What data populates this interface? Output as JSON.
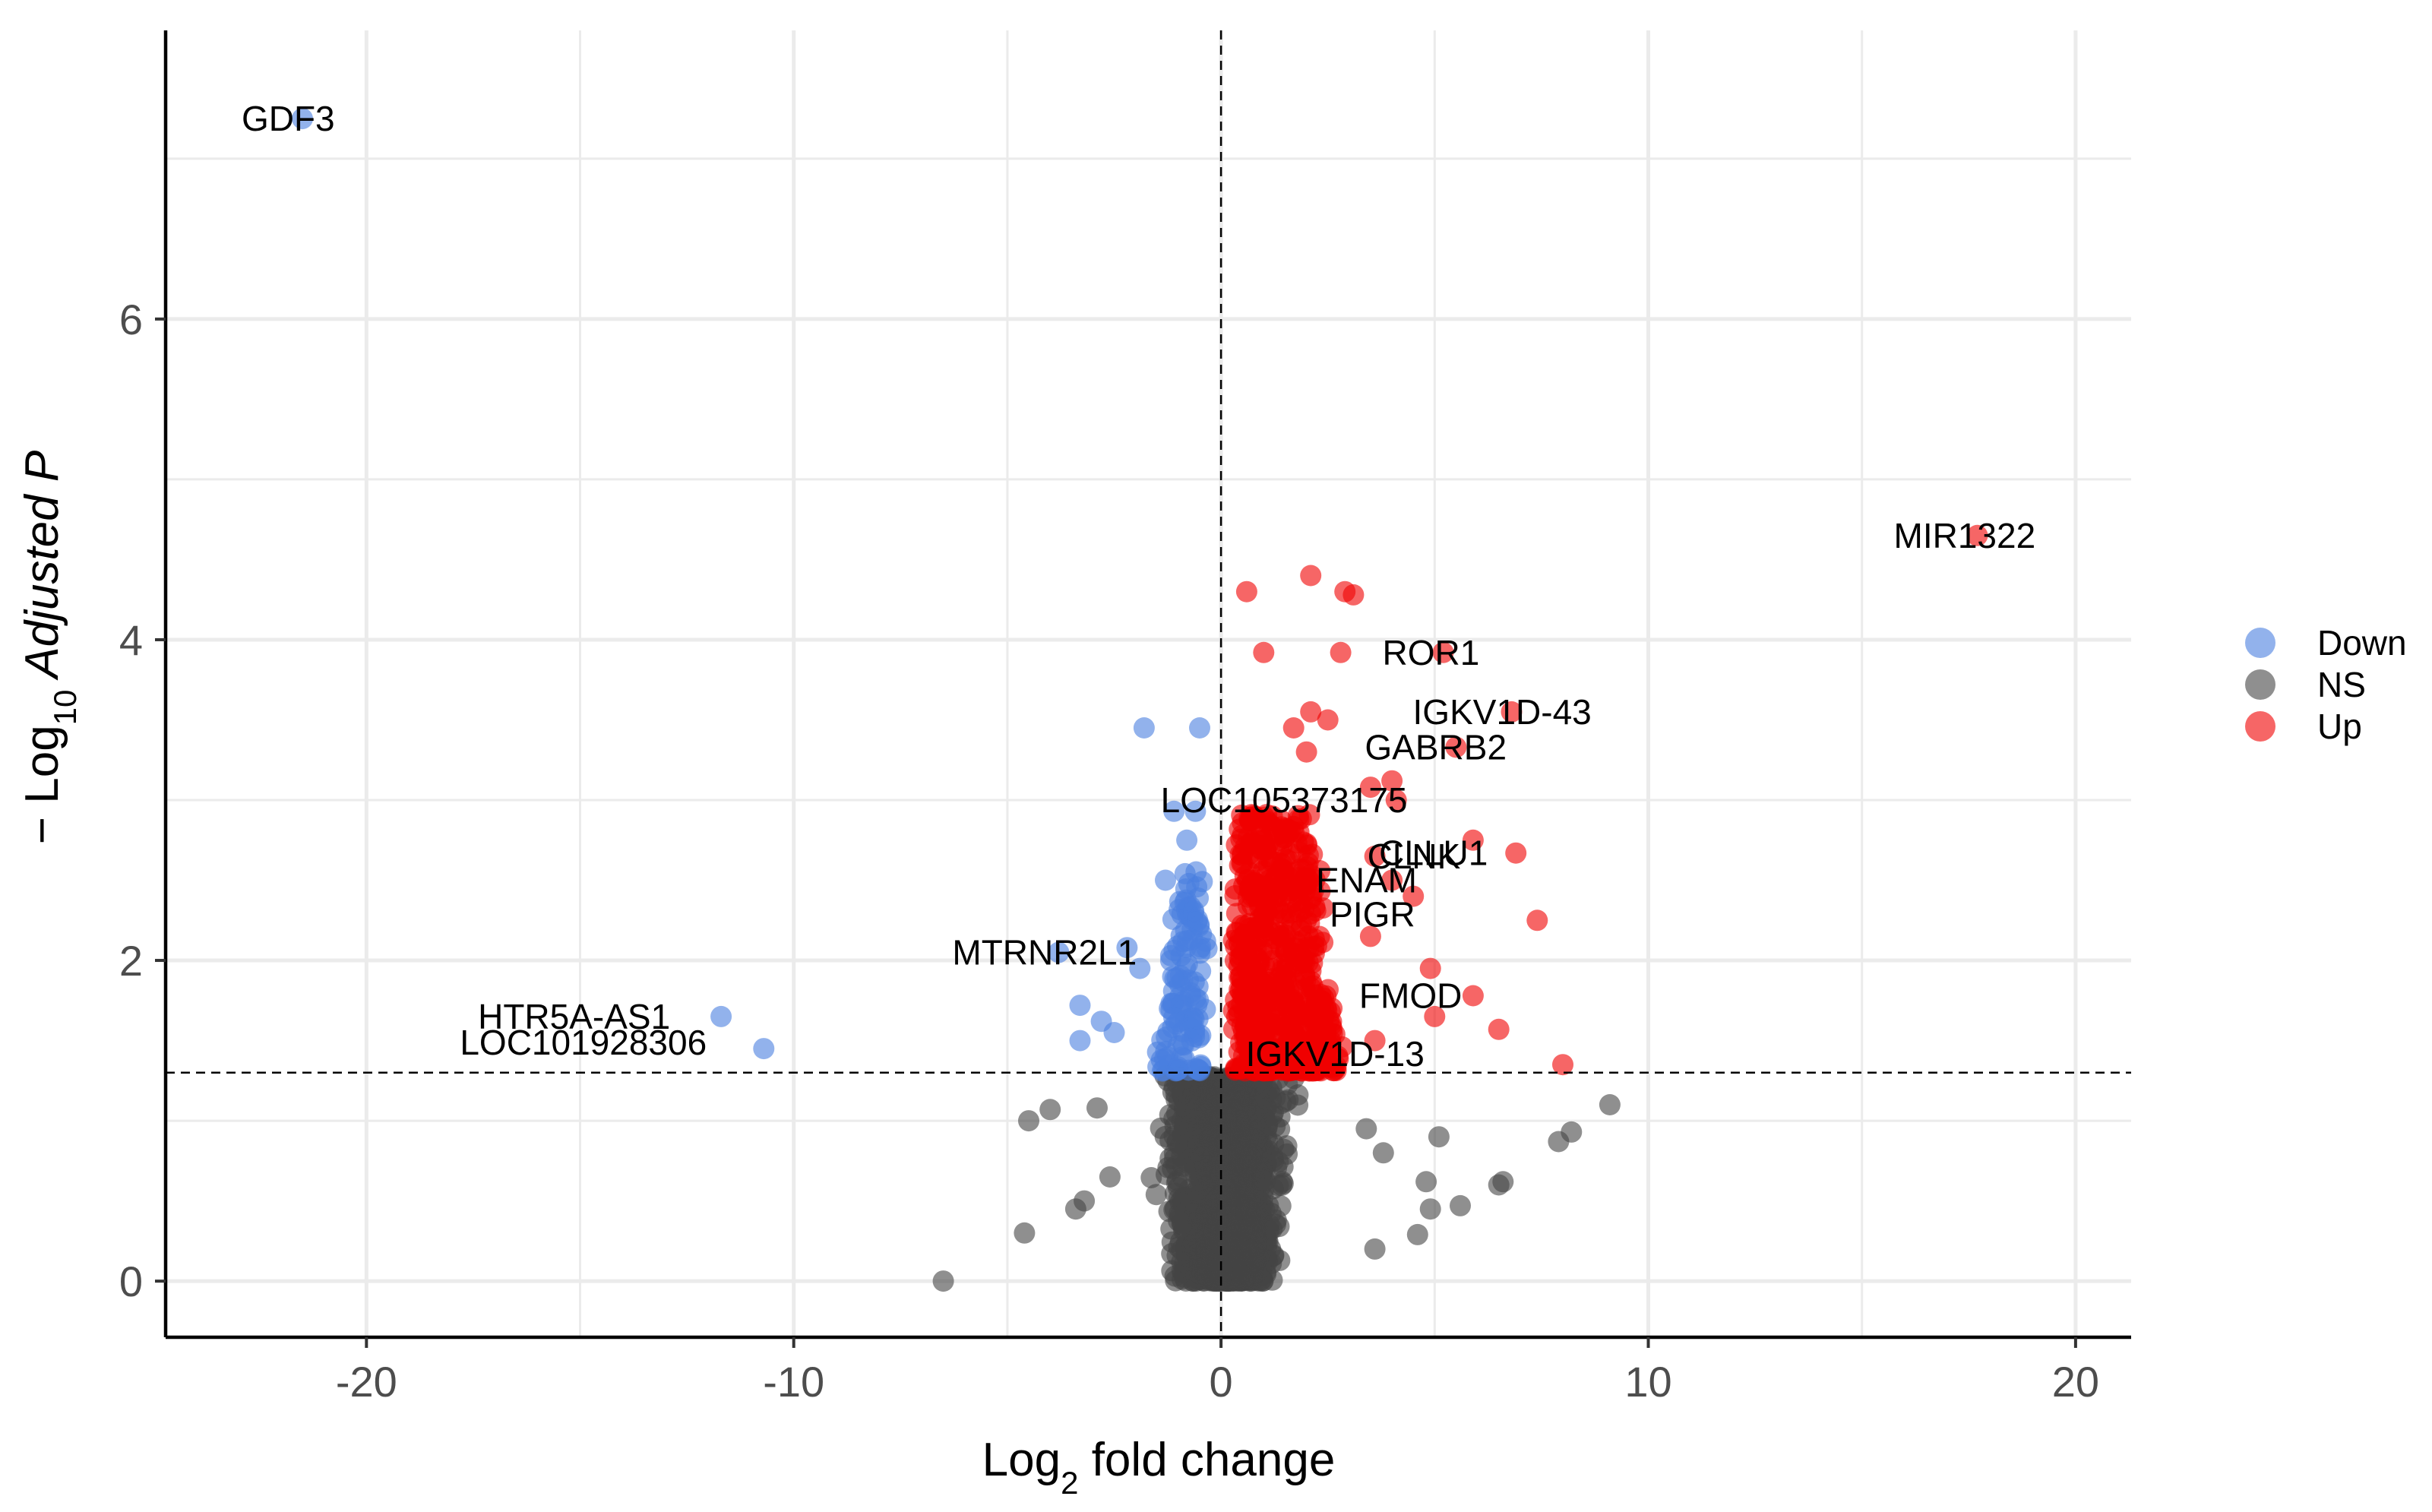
{
  "chart_data": {
    "type": "scatter",
    "title": "",
    "xlabel": {
      "base": "Log",
      "sub": "2",
      "rest": " fold change"
    },
    "ylabel": {
      "prefix": "− Log",
      "sub": "10",
      "rest": " Adjusted P"
    },
    "xlim": [
      -24.7,
      21.3
    ],
    "ylim": [
      -0.35,
      7.8
    ],
    "x_ticks": [
      -20,
      -10,
      0,
      10,
      20
    ],
    "x_tick_labels": [
      "-20",
      "-10",
      "0",
      "10",
      "20"
    ],
    "y_ticks": [
      0,
      2,
      4,
      6
    ],
    "y_tick_labels": [
      "0",
      "2",
      "4",
      "6"
    ],
    "grid": true,
    "x_cutoff": 0,
    "y_cutoff": 1.3,
    "colors": {
      "Down": "#4a7fe0",
      "NS": "#454545",
      "Up": "#f00000"
    },
    "legend": {
      "position": "right",
      "entries": [
        {
          "label": "Down",
          "color": "#4a7fe0"
        },
        {
          "label": "NS",
          "color": "#454545"
        },
        {
          "label": "Up",
          "color": "#f00000"
        }
      ]
    },
    "series": [
      {
        "name": "Down",
        "points": [
          [
            -21.5,
            7.25
          ],
          [
            -11.7,
            1.65
          ],
          [
            -10.7,
            1.45
          ],
          [
            -3.8,
            2.05
          ],
          [
            -3.3,
            1.72
          ],
          [
            -3.3,
            1.5
          ],
          [
            -1.8,
            3.45
          ],
          [
            -0.5,
            3.45
          ],
          [
            -1.1,
            2.93
          ],
          [
            -0.6,
            2.93
          ],
          [
            -0.8,
            2.75
          ],
          [
            -1.3,
            2.5
          ],
          [
            -2.2,
            2.08
          ],
          [
            -2.5,
            1.55
          ],
          [
            -1.9,
            1.95
          ],
          [
            -2.8,
            1.62
          ]
        ]
      },
      {
        "name": "Up",
        "points": [
          [
            17.7,
            4.65
          ],
          [
            2.1,
            4.4
          ],
          [
            0.6,
            4.3
          ],
          [
            2.9,
            4.3
          ],
          [
            3.1,
            4.28
          ],
          [
            5.2,
            3.92
          ],
          [
            1.0,
            3.92
          ],
          [
            2.8,
            3.92
          ],
          [
            6.8,
            3.55
          ],
          [
            2.1,
            3.55
          ],
          [
            2.5,
            3.5
          ],
          [
            1.7,
            3.45
          ],
          [
            5.5,
            3.33
          ],
          [
            2.0,
            3.3
          ],
          [
            4.0,
            3.12
          ],
          [
            3.5,
            3.08
          ],
          [
            1.2,
            2.9
          ],
          [
            4.1,
            3.0
          ],
          [
            5.9,
            2.75
          ],
          [
            6.9,
            2.67
          ],
          [
            3.6,
            2.65
          ],
          [
            4.0,
            2.5
          ],
          [
            4.5,
            2.4
          ],
          [
            7.4,
            2.25
          ],
          [
            3.5,
            2.15
          ],
          [
            4.9,
            1.95
          ],
          [
            5.9,
            1.78
          ],
          [
            5.0,
            1.65
          ],
          [
            6.5,
            1.57
          ],
          [
            8.0,
            1.35
          ],
          [
            3.6,
            1.5
          ],
          [
            2.5,
            1.35
          ]
        ]
      },
      {
        "name": "NS",
        "points": [
          [
            -4.6,
            0.3
          ],
          [
            -4.5,
            1.0
          ],
          [
            -4.0,
            1.07
          ],
          [
            -3.4,
            0.45
          ],
          [
            -3.2,
            0.5
          ],
          [
            -2.9,
            1.08
          ],
          [
            -2.6,
            0.65
          ],
          [
            -6.5,
            0
          ],
          [
            6.6,
            0.62
          ],
          [
            9.1,
            1.1
          ],
          [
            8.2,
            0.93
          ],
          [
            7.9,
            0.87
          ],
          [
            6.5,
            0.6
          ],
          [
            5.6,
            0.47
          ],
          [
            5.1,
            0.9
          ],
          [
            4.8,
            0.62
          ],
          [
            4.9,
            0.45
          ],
          [
            4.6,
            0.29
          ],
          [
            3.8,
            0.8
          ],
          [
            3.4,
            0.95
          ],
          [
            3.6,
            0.2
          ]
        ]
      }
    ],
    "labels": [
      {
        "text": "GDF3",
        "x": -21.5,
        "y": 7.25
      },
      {
        "text": "MIR1322",
        "x": 17.7,
        "y": 4.65
      },
      {
        "text": "ROR1",
        "x": 5.2,
        "y": 3.92
      },
      {
        "text": "IGKV1D-43",
        "x": 6.8,
        "y": 3.55
      },
      {
        "text": "GABRB2",
        "x": 5.5,
        "y": 3.33
      },
      {
        "text": "LOC105373175",
        "x": 4.1,
        "y": 3.0
      },
      {
        "text": "CLNK",
        "x": 3.6,
        "y": 2.65
      },
      {
        "text": "CLLU1",
        "x": 6.9,
        "y": 2.67
      },
      {
        "text": "ENAM",
        "x": 4.0,
        "y": 2.5
      },
      {
        "text": "PIGR",
        "x": 4.5,
        "y": 2.25
      },
      {
        "text": "MTRNR2L1",
        "x": -3.8,
        "y": 2.05
      },
      {
        "text": "FMOD",
        "x": 5.9,
        "y": 1.78
      },
      {
        "text": "HTR5A-AS1",
        "x": -11.7,
        "y": 1.65
      },
      {
        "text": "LOC101928306",
        "x": -10.7,
        "y": 1.45
      },
      {
        "text": "IGKV1D-13",
        "x": 3.6,
        "y": 1.38
      }
    ]
  }
}
